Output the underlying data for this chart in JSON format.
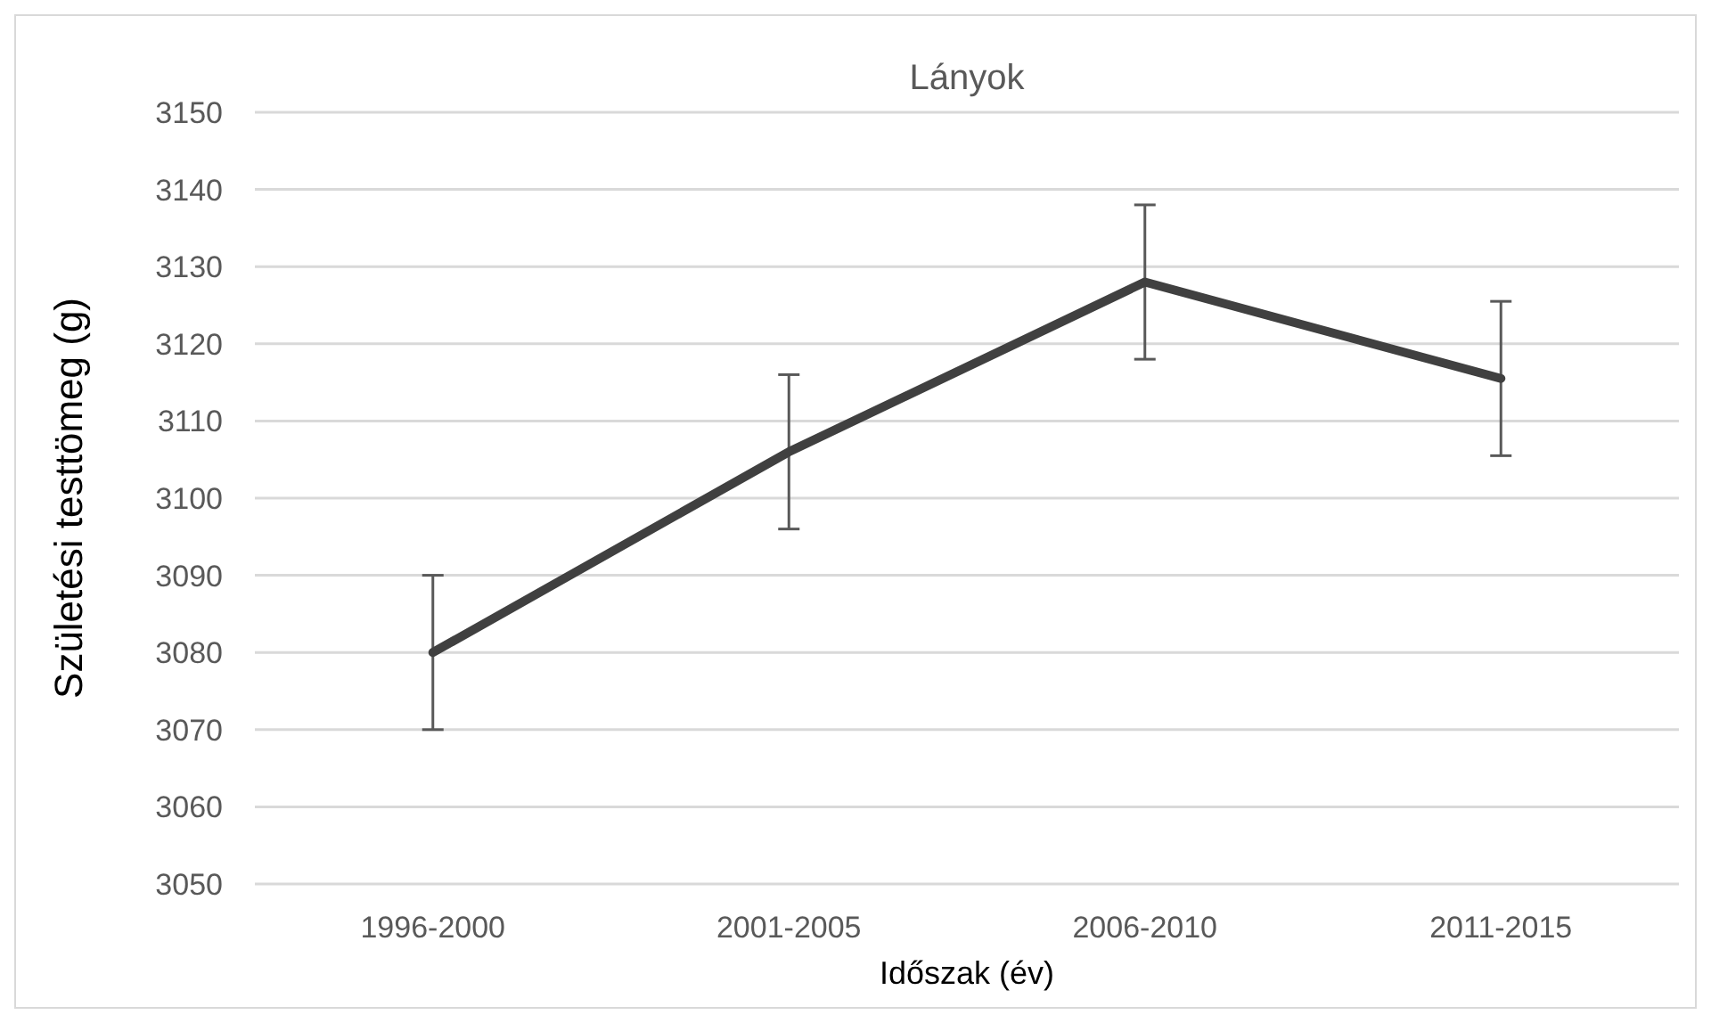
{
  "chart_data": {
    "type": "line",
    "title": "Lányok",
    "xlabel": "Időszak (év)",
    "ylabel": "Születési testtömeg (g)",
    "categories": [
      "1996-2000",
      "2001-2005",
      "2006-2010",
      "2011-2015"
    ],
    "series": [
      {
        "color": "#404040",
        "values": [
          3080,
          3106,
          3128,
          3115.5
        ],
        "errors": [
          10,
          10,
          10,
          10
        ]
      }
    ],
    "ylim": [
      3050,
      3150
    ],
    "yticks": [
      3050,
      3060,
      3070,
      3080,
      3090,
      3100,
      3110,
      3120,
      3130,
      3140,
      3150
    ],
    "grid": "y",
    "marker": "none",
    "line_style": "solid"
  }
}
